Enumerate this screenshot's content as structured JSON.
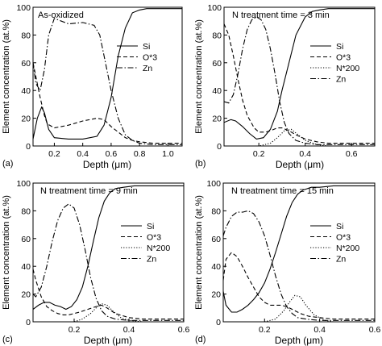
{
  "figure": {
    "shared_ylabel": "Element concentration (at.%)"
  },
  "chart_data": [
    {
      "type": "line",
      "panel_letter": "(a)",
      "title": "As-oxidized",
      "xlabel": "Depth (μm)",
      "ylabel": "Element concentration (at.%)",
      "xlim": [
        0.05,
        1.1
      ],
      "ylim": [
        0,
        100
      ],
      "xticks": [
        "0.2",
        "0.4",
        "0.6",
        "0.8",
        "1.0"
      ],
      "xtick_values": [
        0.2,
        0.4,
        0.6,
        0.8,
        1.0
      ],
      "yticks": [
        "0",
        "20",
        "40",
        "60",
        "80",
        "100"
      ],
      "ytick_values": [
        0,
        20,
        40,
        60,
        80,
        100
      ],
      "legend_position": "top-right",
      "series": [
        {
          "name": "Si",
          "dash": "solid",
          "x": [
            0.05,
            0.08,
            0.11,
            0.13,
            0.16,
            0.2,
            0.3,
            0.4,
            0.5,
            0.55,
            0.6,
            0.65,
            0.7,
            0.75,
            0.8,
            0.85,
            0.9,
            1.0,
            1.1
          ],
          "y": [
            5,
            20,
            28,
            24,
            12,
            6,
            5,
            5,
            7,
            15,
            35,
            65,
            85,
            96,
            98,
            99,
            99,
            99,
            99
          ]
        },
        {
          "name": "O*3",
          "dash": "dashed",
          "x": [
            0.05,
            0.07,
            0.1,
            0.13,
            0.15,
            0.2,
            0.3,
            0.4,
            0.5,
            0.55,
            0.6,
            0.65,
            0.7,
            0.75,
            0.8,
            0.9,
            1.0,
            1.1
          ],
          "y": [
            60,
            50,
            35,
            22,
            16,
            13,
            15,
            18,
            20,
            19,
            14,
            10,
            6,
            4,
            3,
            2,
            2,
            2
          ]
        },
        {
          "name": "Zn",
          "dash": "dashdot",
          "x": [
            0.05,
            0.07,
            0.1,
            0.13,
            0.16,
            0.2,
            0.25,
            0.3,
            0.4,
            0.48,
            0.52,
            0.55,
            0.6,
            0.65,
            0.7,
            0.75,
            0.8,
            0.9,
            1.0,
            1.1
          ],
          "y": [
            60,
            45,
            40,
            55,
            80,
            92,
            90,
            88,
            89,
            87,
            80,
            65,
            40,
            20,
            8,
            4,
            2,
            1,
            1,
            1
          ]
        }
      ]
    },
    {
      "type": "line",
      "panel_letter": "(b)",
      "title": "N treatment time = 3 min",
      "xlabel": "Depth (μm)",
      "ylabel": "Element concentration (at.%)",
      "xlim": [
        0.05,
        0.7
      ],
      "ylim": [
        0,
        100
      ],
      "xticks": [
        "0.2",
        "0.4",
        "0.6"
      ],
      "xtick_values": [
        0.2,
        0.4,
        0.6
      ],
      "yticks": [
        "0",
        "20",
        "40",
        "60",
        "80",
        "100"
      ],
      "ytick_values": [
        0,
        20,
        40,
        60,
        80,
        100
      ],
      "legend_position": "right",
      "series": [
        {
          "name": "Si",
          "dash": "solid",
          "x": [
            0.05,
            0.08,
            0.1,
            0.13,
            0.16,
            0.19,
            0.22,
            0.25,
            0.28,
            0.3,
            0.33,
            0.36,
            0.4,
            0.43,
            0.46,
            0.5,
            0.6,
            0.7
          ],
          "y": [
            17,
            19,
            18,
            14,
            9,
            5,
            6,
            12,
            25,
            40,
            60,
            80,
            93,
            97,
            98,
            99,
            99,
            99
          ]
        },
        {
          "name": "O*3",
          "dash": "dashed",
          "x": [
            0.05,
            0.07,
            0.09,
            0.11,
            0.13,
            0.15,
            0.18,
            0.2,
            0.23,
            0.25,
            0.28,
            0.3,
            0.33,
            0.36,
            0.4,
            0.45,
            0.5,
            0.6,
            0.7
          ],
          "y": [
            88,
            80,
            65,
            48,
            33,
            22,
            13,
            10,
            10,
            11,
            13,
            13,
            11,
            8,
            5,
            3,
            2,
            2,
            2
          ]
        },
        {
          "name": "N*200",
          "dash": "dotted",
          "x": [
            0.05,
            0.1,
            0.15,
            0.2,
            0.25,
            0.28,
            0.31,
            0.34,
            0.37,
            0.4,
            0.45,
            0.5,
            0.6,
            0.7
          ],
          "y": [
            0,
            0,
            0,
            0,
            2,
            6,
            11,
            12,
            8,
            4,
            1,
            0,
            0,
            0
          ]
        },
        {
          "name": "Zn",
          "dash": "dashdot",
          "x": [
            0.05,
            0.07,
            0.09,
            0.11,
            0.13,
            0.15,
            0.17,
            0.19,
            0.21,
            0.23,
            0.25,
            0.27,
            0.29,
            0.31,
            0.33,
            0.36,
            0.4,
            0.45,
            0.5,
            0.6,
            0.7
          ],
          "y": [
            32,
            31,
            37,
            52,
            70,
            84,
            91,
            93,
            91,
            84,
            70,
            52,
            32,
            17,
            9,
            4,
            2,
            1,
            1,
            1,
            1
          ]
        }
      ]
    },
    {
      "type": "line",
      "panel_letter": "(c)",
      "title": "N treatment time = 9 min",
      "xlabel": "Depth (μm)",
      "ylabel": "Element concentration (at.%)",
      "xlim": [
        0.05,
        0.6
      ],
      "ylim": [
        0,
        100
      ],
      "xticks": [
        "0.2",
        "0.4",
        "0.6"
      ],
      "xtick_values": [
        0.2,
        0.4,
        0.6
      ],
      "yticks": [
        "0",
        "20",
        "40",
        "60",
        "80",
        "100"
      ],
      "ytick_values": [
        0,
        20,
        40,
        60,
        80,
        100
      ],
      "legend_position": "right",
      "series": [
        {
          "name": "Si",
          "dash": "solid",
          "x": [
            0.05,
            0.07,
            0.09,
            0.11,
            0.13,
            0.15,
            0.17,
            0.19,
            0.21,
            0.23,
            0.25,
            0.27,
            0.29,
            0.31,
            0.33,
            0.35,
            0.38,
            0.42,
            0.46,
            0.5,
            0.6
          ],
          "y": [
            9,
            12,
            14,
            14,
            12,
            11,
            9,
            11,
            16,
            25,
            40,
            58,
            75,
            87,
            93,
            96,
            97,
            98,
            98,
            98,
            98
          ]
        },
        {
          "name": "O*3",
          "dash": "dashed",
          "x": [
            0.05,
            0.06,
            0.08,
            0.1,
            0.12,
            0.14,
            0.16,
            0.18,
            0.2,
            0.22,
            0.25,
            0.28,
            0.3,
            0.32,
            0.35,
            0.4,
            0.45,
            0.5,
            0.6
          ],
          "y": [
            38,
            30,
            18,
            11,
            8,
            6,
            5,
            5,
            6,
            7,
            9,
            11,
            12,
            10,
            6,
            3,
            2,
            2,
            2
          ]
        },
        {
          "name": "N*200",
          "dash": "dotted",
          "x": [
            0.05,
            0.1,
            0.15,
            0.2,
            0.23,
            0.26,
            0.28,
            0.3,
            0.32,
            0.34,
            0.37,
            0.4,
            0.45,
            0.5,
            0.6
          ],
          "y": [
            0,
            0,
            0,
            0,
            2,
            6,
            10,
            13,
            12,
            8,
            3,
            1,
            0,
            0,
            0
          ]
        },
        {
          "name": "Zn",
          "dash": "dashdot",
          "x": [
            0.05,
            0.06,
            0.08,
            0.1,
            0.12,
            0.14,
            0.16,
            0.18,
            0.2,
            0.22,
            0.24,
            0.26,
            0.28,
            0.3,
            0.32,
            0.35,
            0.4,
            0.45,
            0.5,
            0.6
          ],
          "y": [
            20,
            18,
            25,
            40,
            58,
            73,
            82,
            85,
            82,
            70,
            52,
            32,
            17,
            8,
            4,
            2,
            1,
            1,
            1,
            1
          ]
        }
      ]
    },
    {
      "type": "line",
      "panel_letter": "(d)",
      "title": "N treatment time = 15 min",
      "xlabel": "Depth (μm)",
      "ylabel": "Element concentration (at.%)",
      "xlim": [
        0.05,
        0.6
      ],
      "ylim": [
        0,
        100
      ],
      "xticks": [
        "0.2",
        "0.4",
        "0.6"
      ],
      "xtick_values": [
        0.2,
        0.4,
        0.6
      ],
      "yticks": [
        "0",
        "20",
        "40",
        "60",
        "80",
        "100"
      ],
      "ytick_values": [
        0,
        20,
        40,
        60,
        80,
        100
      ],
      "legend_position": "right",
      "series": [
        {
          "name": "Si",
          "dash": "solid",
          "x": [
            0.05,
            0.06,
            0.08,
            0.1,
            0.12,
            0.14,
            0.16,
            0.18,
            0.2,
            0.22,
            0.24,
            0.26,
            0.28,
            0.3,
            0.32,
            0.34,
            0.37,
            0.4,
            0.45,
            0.5,
            0.6
          ],
          "y": [
            22,
            12,
            7,
            7,
            9,
            12,
            16,
            21,
            28,
            38,
            50,
            63,
            76,
            86,
            92,
            95,
            97,
            97,
            98,
            98,
            98
          ]
        },
        {
          "name": "O*3",
          "dash": "dashed",
          "x": [
            0.05,
            0.06,
            0.08,
            0.1,
            0.12,
            0.14,
            0.16,
            0.18,
            0.2,
            0.22,
            0.24,
            0.26,
            0.28,
            0.3,
            0.33,
            0.36,
            0.4,
            0.45,
            0.5,
            0.6
          ],
          "y": [
            30,
            45,
            50,
            47,
            40,
            32,
            25,
            18,
            14,
            12,
            12,
            12,
            11,
            9,
            6,
            4,
            3,
            2,
            2,
            2
          ]
        },
        {
          "name": "N*200",
          "dash": "dotted",
          "x": [
            0.05,
            0.1,
            0.15,
            0.2,
            0.24,
            0.27,
            0.29,
            0.31,
            0.33,
            0.35,
            0.38,
            0.42,
            0.45,
            0.5,
            0.6
          ],
          "y": [
            0,
            0,
            0,
            0,
            2,
            8,
            14,
            19,
            18,
            12,
            5,
            1,
            0,
            0,
            0
          ]
        },
        {
          "name": "Zn",
          "dash": "dashdot",
          "x": [
            0.05,
            0.06,
            0.08,
            0.1,
            0.12,
            0.14,
            0.16,
            0.18,
            0.2,
            0.22,
            0.24,
            0.26,
            0.28,
            0.3,
            0.32,
            0.35,
            0.4,
            0.45,
            0.5,
            0.6
          ],
          "y": [
            62,
            68,
            76,
            79,
            79,
            80,
            78,
            72,
            62,
            48,
            33,
            20,
            11,
            6,
            3,
            2,
            1,
            1,
            1,
            1
          ]
        }
      ]
    }
  ]
}
